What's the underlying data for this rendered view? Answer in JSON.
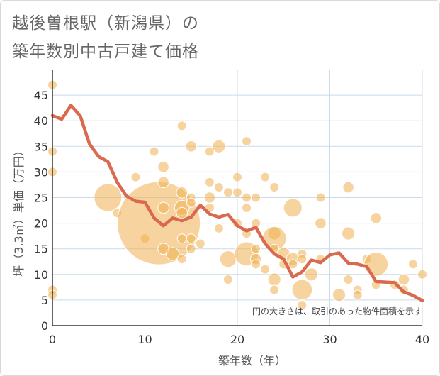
{
  "title_line1": "越後曽根駅（新潟県）の",
  "title_line2": "築年数別中古戸建て価格",
  "note": "円の大きさは、取引のあった物件面積を示す",
  "colors": {
    "bubble": "#f0b050",
    "line": "#d9694f",
    "grid": "#c9dbe9",
    "background": "#ffffff"
  },
  "chart_data": {
    "type": "scatter",
    "xlabel": "築年数（年）",
    "ylabel": "坪（3.3㎡）単価（万円）",
    "xlim": [
      0,
      40
    ],
    "ylim": [
      0,
      50
    ],
    "xticks": [
      0,
      10,
      20,
      30,
      40
    ],
    "yticks": [
      0,
      5,
      10,
      15,
      20,
      25,
      30,
      35,
      40,
      45
    ],
    "grid": true,
    "bubbles": [
      {
        "x": 0,
        "y": 47,
        "s": 1
      },
      {
        "x": 0,
        "y": 34,
        "s": 1
      },
      {
        "x": 0,
        "y": 30,
        "s": 1
      },
      {
        "x": 0,
        "y": 7,
        "s": 1
      },
      {
        "x": 0,
        "y": 6,
        "s": 1
      },
      {
        "x": 6,
        "y": 25,
        "s": 3
      },
      {
        "x": 7,
        "y": 22,
        "s": 1
      },
      {
        "x": 9,
        "y": 29,
        "s": 1
      },
      {
        "x": 10,
        "y": 17,
        "s": 1
      },
      {
        "x": 11,
        "y": 34,
        "s": 1
      },
      {
        "x": 11.5,
        "y": 20,
        "s": 9
      },
      {
        "x": 12,
        "y": 31,
        "s": 1.2
      },
      {
        "x": 12,
        "y": 28,
        "s": 1.2
      },
      {
        "x": 12,
        "y": 23,
        "s": 1.2
      },
      {
        "x": 12,
        "y": 15,
        "s": 1.2
      },
      {
        "x": 13,
        "y": 14,
        "s": 1.4
      },
      {
        "x": 14,
        "y": 39,
        "s": 1
      },
      {
        "x": 14,
        "y": 26,
        "s": 1.2
      },
      {
        "x": 14,
        "y": 23,
        "s": 1.6
      },
      {
        "x": 14,
        "y": 22,
        "s": 1.2
      },
      {
        "x": 14,
        "y": 17,
        "s": 1
      },
      {
        "x": 14,
        "y": 13,
        "s": 1
      },
      {
        "x": 15,
        "y": 35,
        "s": 1.2
      },
      {
        "x": 15,
        "y": 25,
        "s": 1
      },
      {
        "x": 15,
        "y": 24,
        "s": 1
      },
      {
        "x": 15,
        "y": 17,
        "s": 1
      },
      {
        "x": 15,
        "y": 15,
        "s": 1
      },
      {
        "x": 16,
        "y": 16,
        "s": 1
      },
      {
        "x": 17,
        "y": 34,
        "s": 1
      },
      {
        "x": 17,
        "y": 28,
        "s": 1
      },
      {
        "x": 17,
        "y": 25,
        "s": 1.2
      },
      {
        "x": 17,
        "y": 23,
        "s": 1
      },
      {
        "x": 18,
        "y": 35,
        "s": 1.4
      },
      {
        "x": 18,
        "y": 27,
        "s": 1
      },
      {
        "x": 18,
        "y": 19,
        "s": 1
      },
      {
        "x": 19,
        "y": 26,
        "s": 1
      },
      {
        "x": 19,
        "y": 13,
        "s": 1.8
      },
      {
        "x": 19,
        "y": 9,
        "s": 1
      },
      {
        "x": 20,
        "y": 29,
        "s": 1
      },
      {
        "x": 20,
        "y": 26,
        "s": 1
      },
      {
        "x": 20,
        "y": 20,
        "s": 1
      },
      {
        "x": 21,
        "y": 36,
        "s": 1
      },
      {
        "x": 21,
        "y": 25,
        "s": 1
      },
      {
        "x": 21,
        "y": 23,
        "s": 1
      },
      {
        "x": 21,
        "y": 18,
        "s": 1
      },
      {
        "x": 21,
        "y": 14,
        "s": 2.6
      },
      {
        "x": 22,
        "y": 25,
        "s": 1
      },
      {
        "x": 22,
        "y": 20,
        "s": 1
      },
      {
        "x": 22,
        "y": 15,
        "s": 1
      },
      {
        "x": 22,
        "y": 13,
        "s": 1.2
      },
      {
        "x": 22,
        "y": 12,
        "s": 1
      },
      {
        "x": 23,
        "y": 29,
        "s": 1
      },
      {
        "x": 23,
        "y": 11,
        "s": 1
      },
      {
        "x": 24,
        "y": 27,
        "s": 1
      },
      {
        "x": 24,
        "y": 18,
        "s": 1.4
      },
      {
        "x": 24,
        "y": 17,
        "s": 2.6
      },
      {
        "x": 24,
        "y": 15,
        "s": 1
      },
      {
        "x": 24,
        "y": 9,
        "s": 1.4
      },
      {
        "x": 24,
        "y": 7,
        "s": 1
      },
      {
        "x": 25,
        "y": 14,
        "s": 1.4
      },
      {
        "x": 25,
        "y": 12,
        "s": 1
      },
      {
        "x": 26,
        "y": 23,
        "s": 2
      },
      {
        "x": 26,
        "y": 13,
        "s": 1.4
      },
      {
        "x": 26,
        "y": 12,
        "s": 1
      },
      {
        "x": 27,
        "y": 14,
        "s": 1
      },
      {
        "x": 27,
        "y": 13,
        "s": 1
      },
      {
        "x": 27,
        "y": 7,
        "s": 2.2
      },
      {
        "x": 27,
        "y": 4,
        "s": 1
      },
      {
        "x": 28,
        "y": 10,
        "s": 1.4
      },
      {
        "x": 29,
        "y": 25,
        "s": 1
      },
      {
        "x": 29,
        "y": 20,
        "s": 1.2
      },
      {
        "x": 29,
        "y": 13,
        "s": 1
      },
      {
        "x": 31,
        "y": 6,
        "s": 1.4
      },
      {
        "x": 32,
        "y": 27,
        "s": 1.2
      },
      {
        "x": 32,
        "y": 18,
        "s": 1.4
      },
      {
        "x": 32,
        "y": 9,
        "s": 1
      },
      {
        "x": 33,
        "y": 7,
        "s": 1
      },
      {
        "x": 33,
        "y": 6,
        "s": 1
      },
      {
        "x": 34,
        "y": 13,
        "s": 1
      },
      {
        "x": 35,
        "y": 21,
        "s": 1.2
      },
      {
        "x": 35,
        "y": 12,
        "s": 2.6
      },
      {
        "x": 35,
        "y": 8,
        "s": 1
      },
      {
        "x": 37,
        "y": 8,
        "s": 1
      },
      {
        "x": 38,
        "y": 9,
        "s": 1.2
      },
      {
        "x": 38,
        "y": 7,
        "s": 1
      },
      {
        "x": 39,
        "y": 12,
        "s": 1
      },
      {
        "x": 40,
        "y": 10,
        "s": 1
      }
    ],
    "trend": {
      "x": [
        0,
        1,
        2,
        3,
        4,
        5,
        6,
        7,
        8,
        9,
        10,
        11,
        12,
        13,
        14,
        15,
        16,
        17,
        18,
        19,
        20,
        21,
        22,
        23,
        24,
        25,
        26,
        27,
        28,
        29,
        30,
        31,
        32,
        33,
        34,
        35,
        36,
        37,
        38,
        39,
        40
      ],
      "y": [
        41,
        40.3,
        43,
        41,
        35.5,
        33,
        32,
        28,
        25.3,
        24.3,
        24.1,
        21,
        19.5,
        21,
        20.5,
        21.2,
        23.5,
        21.8,
        21.2,
        21.7,
        19.5,
        18.5,
        19.2,
        16,
        14,
        13,
        9.5,
        10.5,
        12.8,
        12.3,
        13.8,
        14.2,
        12.2,
        12,
        11.5,
        8.6,
        8.5,
        8.4,
        6.6,
        5.9,
        4.9
      ]
    }
  }
}
